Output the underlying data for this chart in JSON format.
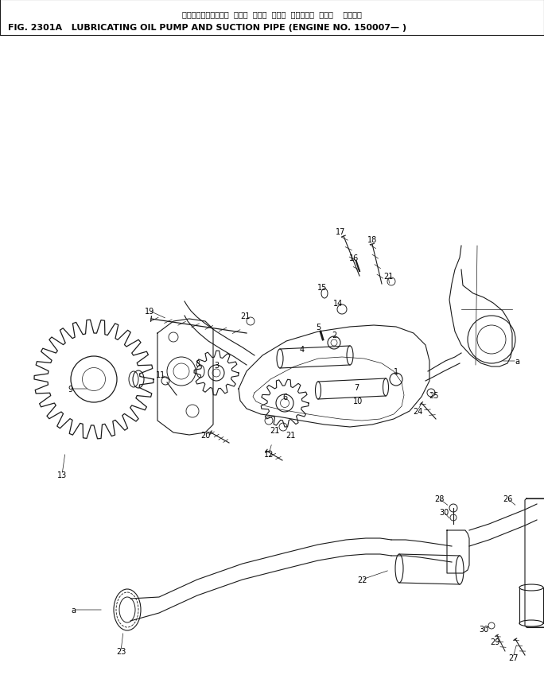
{
  "title_japanese": "ルーブリケーティング  オイル  ポンプ  および  サクション  パイプ    適用号機",
  "title_english": "FIG. 2301A   LUBRICATING OIL PUMP AND SUCTION PIPE (ENGINE NO. 150007— )",
  "bg_color": "#ffffff",
  "line_color": "#1a1a1a",
  "text_color": "#000000",
  "fig_width": 6.84,
  "fig_height": 8.79,
  "dpi": 100
}
